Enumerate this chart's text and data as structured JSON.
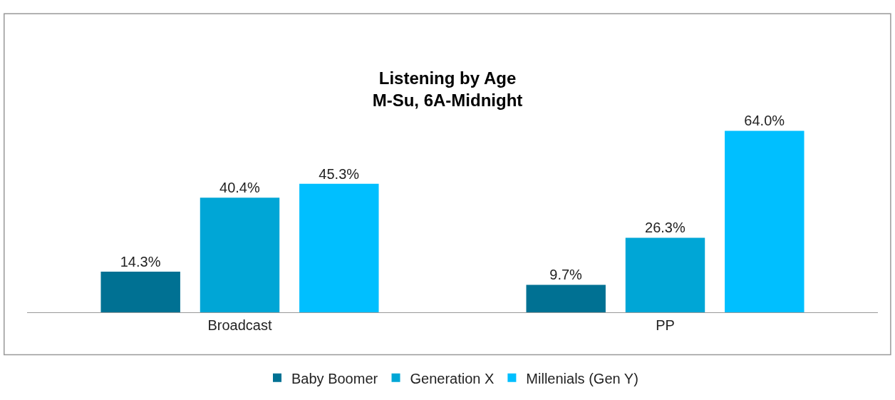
{
  "chart_data": {
    "type": "bar",
    "title": "Listening by Age",
    "subtitle": "M-Su, 6A-Midnight",
    "categories": [
      "Broadcast",
      "PP"
    ],
    "series": [
      {
        "name": "Baby Boomer",
        "color": "#007193",
        "values": [
          14.3,
          9.7
        ],
        "value_labels": [
          "14.3%",
          "9.7%"
        ]
      },
      {
        "name": "Generation X",
        "color": "#00a6d6",
        "values": [
          40.4,
          26.3
        ],
        "value_labels": [
          "40.4%",
          "26.3%"
        ]
      },
      {
        "name": "Millenials (Gen Y)",
        "color": "#00bfff",
        "values": [
          45.3,
          64.0
        ],
        "value_labels": [
          "45.3%",
          "64.0%"
        ]
      }
    ],
    "legend": "bottom"
  }
}
